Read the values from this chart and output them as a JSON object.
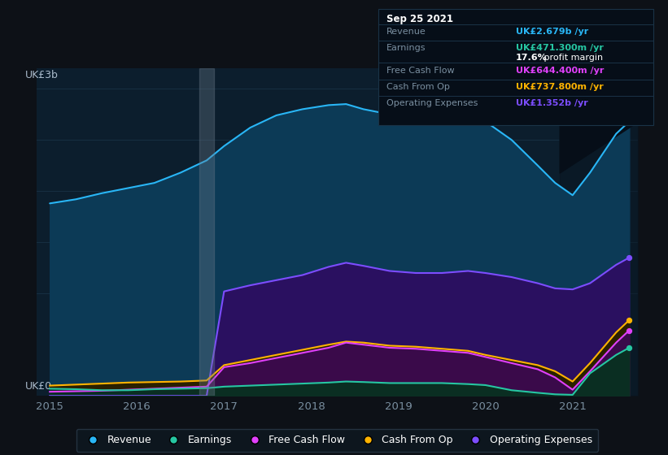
{
  "bg_color": "#0d1117",
  "plot_bg_color": "#0c1e2d",
  "grid_color": "#1a3347",
  "ylabel_text": "UK£3b",
  "ylabel0_text": "UK£0",
  "years": [
    2015.0,
    2015.3,
    2015.6,
    2015.9,
    2016.2,
    2016.5,
    2016.8,
    2017.0,
    2017.3,
    2017.6,
    2017.9,
    2018.2,
    2018.4,
    2018.6,
    2018.9,
    2019.2,
    2019.5,
    2019.8,
    2020.0,
    2020.3,
    2020.6,
    2020.8,
    2021.0,
    2021.2,
    2021.5,
    2021.65
  ],
  "revenue": [
    1.88,
    1.92,
    1.98,
    2.03,
    2.08,
    2.18,
    2.3,
    2.44,
    2.62,
    2.74,
    2.8,
    2.84,
    2.85,
    2.8,
    2.75,
    2.72,
    2.74,
    2.72,
    2.68,
    2.5,
    2.25,
    2.08,
    1.96,
    2.18,
    2.56,
    2.68
  ],
  "earnings": [
    0.07,
    0.065,
    0.055,
    0.055,
    0.065,
    0.07,
    0.075,
    0.09,
    0.1,
    0.11,
    0.12,
    0.13,
    0.14,
    0.135,
    0.125,
    0.125,
    0.125,
    0.115,
    0.105,
    0.055,
    0.03,
    0.015,
    0.01,
    0.22,
    0.4,
    0.47
  ],
  "free_cash_flow": [
    0.04,
    0.045,
    0.05,
    0.06,
    0.07,
    0.08,
    0.09,
    0.28,
    0.32,
    0.37,
    0.42,
    0.47,
    0.52,
    0.5,
    0.47,
    0.46,
    0.44,
    0.42,
    0.38,
    0.32,
    0.26,
    0.18,
    0.06,
    0.24,
    0.52,
    0.64
  ],
  "cash_from_op": [
    0.1,
    0.11,
    0.12,
    0.13,
    0.135,
    0.14,
    0.15,
    0.3,
    0.35,
    0.4,
    0.45,
    0.5,
    0.53,
    0.52,
    0.49,
    0.48,
    0.46,
    0.44,
    0.4,
    0.35,
    0.3,
    0.24,
    0.14,
    0.32,
    0.62,
    0.74
  ],
  "op_expenses": [
    0.0,
    0.0,
    0.0,
    0.0,
    0.0,
    0.0,
    0.0,
    1.02,
    1.08,
    1.13,
    1.18,
    1.26,
    1.3,
    1.27,
    1.22,
    1.2,
    1.2,
    1.22,
    1.2,
    1.16,
    1.1,
    1.05,
    1.04,
    1.1,
    1.28,
    1.35
  ],
  "revenue_line_color": "#29b6f6",
  "revenue_fill_color": "#0c3a56",
  "earnings_line_color": "#26c6a2",
  "earnings_fill_color": "#0a2e22",
  "fcf_line_color": "#e040fb",
  "fcf_fill_color": "#3a0a4a",
  "cfop_line_color": "#ffb300",
  "cfop_fill_color": "#2a2000",
  "opex_line_color": "#7c4dff",
  "opex_fill_color": "#2a1060",
  "dark_overlay_color": "#060e18",
  "highlight_color": "#aabbcc",
  "xticklabels": [
    "2015",
    "2016",
    "2017",
    "2018",
    "2019",
    "2020",
    "2021"
  ],
  "xticks": [
    2015,
    2016,
    2017,
    2018,
    2019,
    2020,
    2021
  ],
  "ylim": [
    0,
    3.2
  ],
  "xlim": [
    2014.85,
    2021.75
  ],
  "tooltip_title": "Sep 25 2021",
  "tooltip_revenue_label": "Revenue",
  "tooltip_revenue_val": "UK£2.679b",
  "tooltip_earnings_label": "Earnings",
  "tooltip_earnings_val": "UK£471.300m",
  "tooltip_margin": "17.6% profit margin",
  "tooltip_fcf_label": "Free Cash Flow",
  "tooltip_fcf_val": "UK£644.400m",
  "tooltip_cfop_label": "Cash From Op",
  "tooltip_cfop_val": "UK£737.800m",
  "tooltip_opex_label": "Operating Expenses",
  "tooltip_opex_val": "UK£1.352b",
  "legend_labels": [
    "Revenue",
    "Earnings",
    "Free Cash Flow",
    "Cash From Op",
    "Operating Expenses"
  ],
  "legend_colors": [
    "#29b6f6",
    "#26c6a2",
    "#e040fb",
    "#ffb300",
    "#7c4dff"
  ]
}
